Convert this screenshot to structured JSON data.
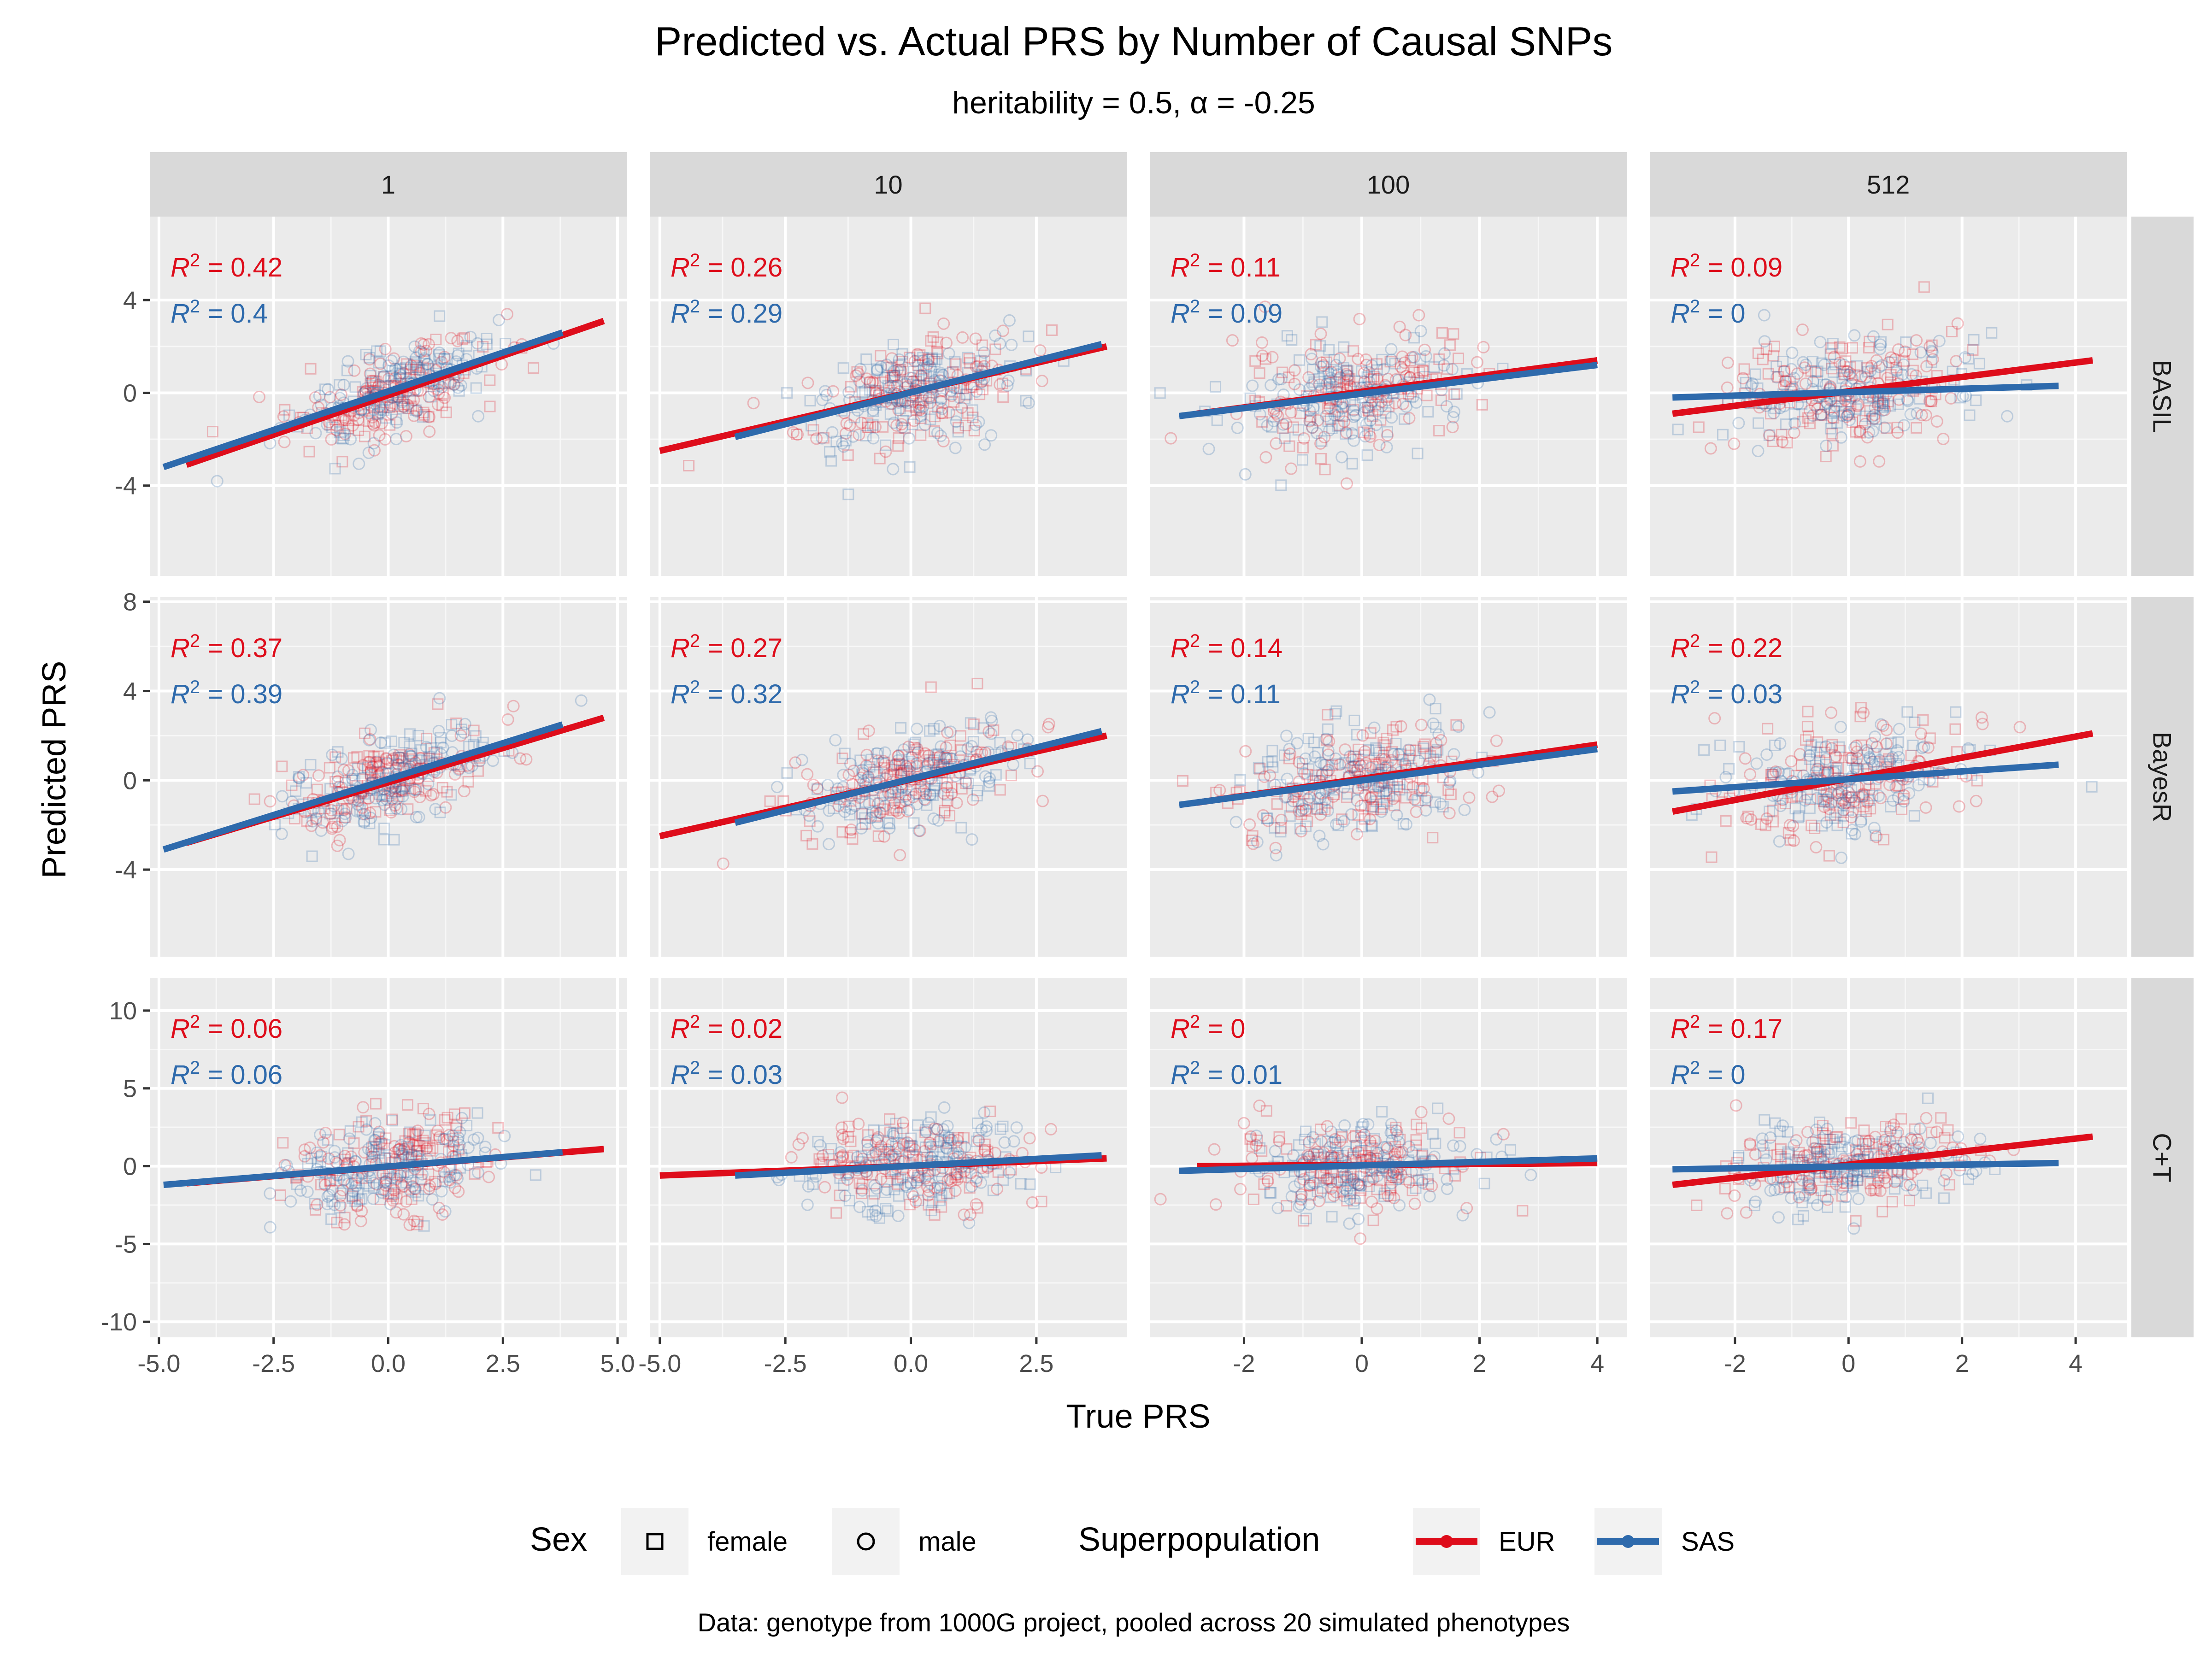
{
  "title": "Predicted vs. Actual PRS by Number of Causal SNPs",
  "subtitle": "heritability = 0.5, α = -0.25",
  "caption": "Data: genotype from 1000G project, pooled across 20 simulated phenotypes",
  "legend": {
    "sex_title": "Sex",
    "sex_items": [
      {
        "label": "female",
        "shape": "square"
      },
      {
        "label": "male",
        "shape": "circle"
      }
    ],
    "pop_title": "Superpopulation",
    "pop_items": [
      {
        "label": "EUR",
        "color": "#de0d1b"
      },
      {
        "label": "SAS",
        "color": "#2e6aac"
      }
    ]
  },
  "colors": {
    "EUR": "#de0d1b",
    "SAS": "#2e6aac",
    "panel_bg": "#ebebeb",
    "strip_bg": "#d9d9d9"
  },
  "chart_data": {
    "type": "scatter",
    "xlabel": "True PRS",
    "ylabel": "Predicted PRS",
    "facet_columns": [
      "1",
      "10",
      "100",
      "512"
    ],
    "facet_rows": [
      "BASIL",
      "BayesR",
      "C+T"
    ],
    "column_x_axes": [
      {
        "xlim": [
          -5.2,
          5.2
        ],
        "ticks": [
          -5.0,
          -2.5,
          0.0,
          2.5,
          5.0
        ],
        "tick_labels": [
          "-5.0",
          "-2.5",
          "0.0",
          "2.5",
          "5.0"
        ]
      },
      {
        "xlim": [
          -5.2,
          4.3
        ],
        "ticks": [
          -5.0,
          -2.5,
          0.0,
          2.5
        ],
        "tick_labels": [
          "-5.0",
          "-2.5",
          "0.0",
          "2.5"
        ]
      },
      {
        "xlim": [
          -3.6,
          4.5
        ],
        "ticks": [
          -2,
          0,
          2,
          4
        ],
        "tick_labels": [
          "-2",
          "0",
          "2",
          "4"
        ]
      },
      {
        "xlim": [
          -3.5,
          4.9
        ],
        "ticks": [
          -2,
          0,
          2,
          4
        ],
        "tick_labels": [
          "-2",
          "0",
          "2",
          "4"
        ]
      }
    ],
    "row_y_axes": [
      {
        "ylim": [
          -7.9,
          7.6
        ],
        "ticks": [
          -4,
          0,
          4
        ],
        "tick_labels": [
          "-4",
          "0",
          "4"
        ]
      },
      {
        "ylim": [
          -7.9,
          8.2
        ],
        "ticks": [
          -4,
          0,
          4,
          8
        ],
        "tick_labels": [
          "-4",
          "0",
          "4",
          "8"
        ]
      },
      {
        "ylim": [
          -11.0,
          12.1
        ],
        "ticks": [
          -10,
          -5,
          0,
          5,
          10
        ],
        "tick_labels": [
          "-10",
          "-5",
          "0",
          "5",
          "10"
        ]
      }
    ],
    "panels": [
      {
        "method": "BASIL",
        "n_causal": "1",
        "r2": [
          {
            "series": "EUR",
            "value": "0.42"
          },
          {
            "series": "SAS",
            "value": "0.4"
          }
        ],
        "fits": [
          {
            "series": "EUR",
            "x": [
              -4.4,
              4.7
            ],
            "y": [
              -3.1,
              3.1
            ]
          },
          {
            "series": "SAS",
            "x": [
              -4.9,
              3.8
            ],
            "y": [
              -3.2,
              2.6
            ]
          }
        ],
        "cloud": {
          "x_center": 0.0,
          "x_sd": 1.1,
          "y_sd": 0.9
        }
      },
      {
        "method": "BASIL",
        "n_causal": "10",
        "r2": [
          {
            "series": "EUR",
            "value": "0.26"
          },
          {
            "series": "SAS",
            "value": "0.29"
          }
        ],
        "fits": [
          {
            "series": "EUR",
            "x": [
              -5.0,
              3.9
            ],
            "y": [
              -2.5,
              2.0
            ]
          },
          {
            "series": "SAS",
            "x": [
              -3.5,
              3.8
            ],
            "y": [
              -1.9,
              2.1
            ]
          }
        ],
        "cloud": {
          "x_center": 0.0,
          "x_sd": 1.1,
          "y_sd": 1.1
        }
      },
      {
        "method": "BASIL",
        "n_causal": "100",
        "r2": [
          {
            "series": "EUR",
            "value": "0.11"
          },
          {
            "series": "SAS",
            "value": "0.09"
          }
        ],
        "fits": [
          {
            "series": "EUR",
            "x": [
              -2.8,
              4.0
            ],
            "y": [
              -0.9,
              1.4
            ]
          },
          {
            "series": "SAS",
            "x": [
              -3.1,
              4.0
            ],
            "y": [
              -1.0,
              1.2
            ]
          }
        ],
        "cloud": {
          "x_center": -0.1,
          "x_sd": 1.0,
          "y_sd": 1.2
        }
      },
      {
        "method": "BASIL",
        "n_causal": "512",
        "r2": [
          {
            "series": "EUR",
            "value": "0.09"
          },
          {
            "series": "SAS",
            "value": "0"
          }
        ],
        "fits": [
          {
            "series": "EUR",
            "x": [
              -3.1,
              4.3
            ],
            "y": [
              -0.9,
              1.4
            ]
          },
          {
            "series": "SAS",
            "x": [
              -3.1,
              3.7
            ],
            "y": [
              -0.2,
              0.3
            ]
          }
        ],
        "cloud": {
          "x_center": 0.0,
          "x_sd": 1.0,
          "y_sd": 1.2
        }
      },
      {
        "method": "BayesR",
        "n_causal": "1",
        "r2": [
          {
            "series": "EUR",
            "value": "0.37"
          },
          {
            "series": "SAS",
            "value": "0.39"
          }
        ],
        "fits": [
          {
            "series": "EUR",
            "x": [
              -4.4,
              4.7
            ],
            "y": [
              -2.8,
              2.8
            ]
          },
          {
            "series": "SAS",
            "x": [
              -4.9,
              3.8
            ],
            "y": [
              -3.1,
              2.5
            ]
          }
        ],
        "cloud": {
          "x_center": 0.0,
          "x_sd": 1.1,
          "y_sd": 1.0
        }
      },
      {
        "method": "BayesR",
        "n_causal": "10",
        "r2": [
          {
            "series": "EUR",
            "value": "0.27"
          },
          {
            "series": "SAS",
            "value": "0.32"
          }
        ],
        "fits": [
          {
            "series": "EUR",
            "x": [
              -5.0,
              3.9
            ],
            "y": [
              -2.5,
              2.0
            ]
          },
          {
            "series": "SAS",
            "x": [
              -3.5,
              3.8
            ],
            "y": [
              -1.9,
              2.2
            ]
          }
        ],
        "cloud": {
          "x_center": 0.0,
          "x_sd": 1.1,
          "y_sd": 1.1
        }
      },
      {
        "method": "BayesR",
        "n_causal": "100",
        "r2": [
          {
            "series": "EUR",
            "value": "0.14"
          },
          {
            "series": "SAS",
            "value": "0.11"
          }
        ],
        "fits": [
          {
            "series": "EUR",
            "x": [
              -2.8,
              4.0
            ],
            "y": [
              -1.0,
              1.6
            ]
          },
          {
            "series": "SAS",
            "x": [
              -3.1,
              4.0
            ],
            "y": [
              -1.1,
              1.4
            ]
          }
        ],
        "cloud": {
          "x_center": -0.1,
          "x_sd": 1.0,
          "y_sd": 1.2
        }
      },
      {
        "method": "BayesR",
        "n_causal": "512",
        "r2": [
          {
            "series": "EUR",
            "value": "0.22"
          },
          {
            "series": "SAS",
            "value": "0.03"
          }
        ],
        "fits": [
          {
            "series": "EUR",
            "x": [
              -3.1,
              4.3
            ],
            "y": [
              -1.4,
              2.1
            ]
          },
          {
            "series": "SAS",
            "x": [
              -3.1,
              3.7
            ],
            "y": [
              -0.5,
              0.7
            ]
          }
        ],
        "cloud": {
          "x_center": 0.0,
          "x_sd": 1.0,
          "y_sd": 1.2
        }
      },
      {
        "method": "C+T",
        "n_causal": "1",
        "r2": [
          {
            "series": "EUR",
            "value": "0.06"
          },
          {
            "series": "SAS",
            "value": "0.06"
          }
        ],
        "fits": [
          {
            "series": "EUR",
            "x": [
              -4.4,
              4.7
            ],
            "y": [
              -1.1,
              1.1
            ]
          },
          {
            "series": "SAS",
            "x": [
              -4.9,
              3.8
            ],
            "y": [
              -1.2,
              0.9
            ]
          }
        ],
        "cloud": {
          "x_center": 0.0,
          "x_sd": 1.1,
          "y_sd": 1.6
        }
      },
      {
        "method": "C+T",
        "n_causal": "10",
        "r2": [
          {
            "series": "EUR",
            "value": "0.02"
          },
          {
            "series": "SAS",
            "value": "0.03"
          }
        ],
        "fits": [
          {
            "series": "EUR",
            "x": [
              -5.0,
              3.9
            ],
            "y": [
              -0.6,
              0.5
            ]
          },
          {
            "series": "SAS",
            "x": [
              -3.5,
              3.8
            ],
            "y": [
              -0.6,
              0.7
            ]
          }
        ],
        "cloud": {
          "x_center": 0.0,
          "x_sd": 1.1,
          "y_sd": 1.5
        }
      },
      {
        "method": "C+T",
        "n_causal": "100",
        "r2": [
          {
            "series": "EUR",
            "value": "0"
          },
          {
            "series": "SAS",
            "value": "0.01"
          }
        ],
        "fits": [
          {
            "series": "EUR",
            "x": [
              -2.8,
              4.0
            ],
            "y": [
              0.0,
              0.2
            ]
          },
          {
            "series": "SAS",
            "x": [
              -3.1,
              4.0
            ],
            "y": [
              -0.3,
              0.5
            ]
          }
        ],
        "cloud": {
          "x_center": -0.1,
          "x_sd": 1.0,
          "y_sd": 1.4
        }
      },
      {
        "method": "C+T",
        "n_causal": "512",
        "r2": [
          {
            "series": "EUR",
            "value": "0.17"
          },
          {
            "series": "SAS",
            "value": "0"
          }
        ],
        "fits": [
          {
            "series": "EUR",
            "x": [
              -3.1,
              4.3
            ],
            "y": [
              -1.2,
              1.9
            ]
          },
          {
            "series": "SAS",
            "x": [
              -3.1,
              3.7
            ],
            "y": [
              -0.2,
              0.2
            ]
          }
        ],
        "cloud": {
          "x_center": 0.0,
          "x_sd": 1.0,
          "y_sd": 1.3
        }
      }
    ]
  }
}
